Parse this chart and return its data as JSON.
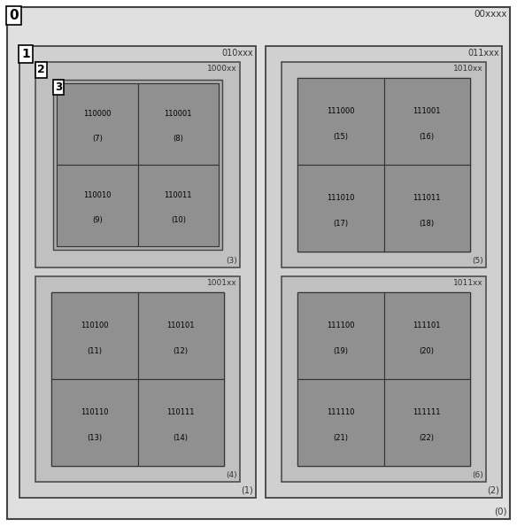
{
  "fig_width": 5.84,
  "fig_height": 5.95,
  "dpi": 100,
  "bg_color": "#ffffff",
  "level0_color": "#e0e0e0",
  "level1_color": "#d0d0d0",
  "level2_color": "#c0c0c0",
  "level3_color": "#aaaaaa",
  "leaf_color": "#909090",
  "border_color": "#444444",
  "label_color": "#333333",
  "level0_code": "00xxxx",
  "level1_left_code": "010xxx",
  "level1_right_code": "011xxx",
  "level2_codes": [
    "1000xx",
    "1001xx",
    "1010xx",
    "1011xx"
  ],
  "node_ids": [
    "(0)",
    "(1)",
    "(2)",
    "(3)",
    "(4)",
    "(5)",
    "(6)"
  ],
  "leaf_data": [
    {
      "code": "110000",
      "id": "(7)"
    },
    {
      "code": "110001",
      "id": "(8)"
    },
    {
      "code": "110010",
      "id": "(9)"
    },
    {
      "code": "110011",
      "id": "(10)"
    },
    {
      "code": "110100",
      "id": "(11)"
    },
    {
      "code": "110101",
      "id": "(12)"
    },
    {
      "code": "110110",
      "id": "(13)"
    },
    {
      "code": "110111",
      "id": "(14)"
    },
    {
      "code": "111000",
      "id": "(15)"
    },
    {
      "code": "111001",
      "id": "(16)"
    },
    {
      "code": "111010",
      "id": "(17)"
    },
    {
      "code": "111011",
      "id": "(18)"
    },
    {
      "code": "111100",
      "id": "(19)"
    },
    {
      "code": "111101",
      "id": "(20)"
    },
    {
      "code": "111110",
      "id": "(21)"
    },
    {
      "code": "111111",
      "id": "(22)"
    }
  ]
}
